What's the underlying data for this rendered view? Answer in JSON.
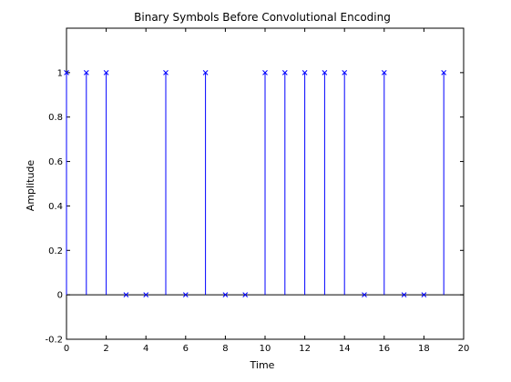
{
  "chart_data": {
    "type": "stem",
    "title": "Binary Symbols Before Convolutional Encoding",
    "xlabel": "Time",
    "ylabel": "Amplitude",
    "xlim": [
      0,
      20
    ],
    "ylim": [
      -0.2,
      1.2
    ],
    "xticks": [
      "0",
      "2",
      "4",
      "6",
      "8",
      "10",
      "12",
      "14",
      "16",
      "18",
      "20"
    ],
    "yticks": [
      "-0.2",
      "0",
      "0.2",
      "0.4",
      "0.6",
      "0.8",
      "1"
    ],
    "x": [
      0,
      1,
      2,
      3,
      4,
      5,
      6,
      7,
      8,
      9,
      10,
      11,
      12,
      13,
      14,
      15,
      16,
      17,
      18,
      19
    ],
    "values": [
      1,
      1,
      1,
      0,
      0,
      1,
      0,
      1,
      0,
      0,
      1,
      1,
      1,
      1,
      1,
      0,
      1,
      0,
      0,
      1
    ],
    "marker": "x",
    "color": "#0000ff",
    "grid": false,
    "legend": false
  }
}
